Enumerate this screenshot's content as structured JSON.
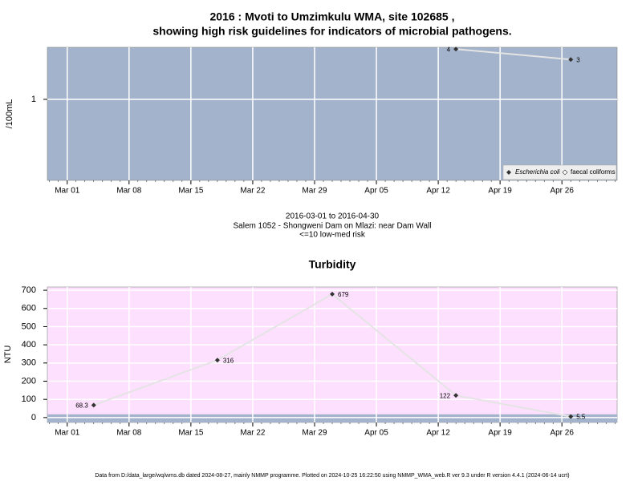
{
  "chart_data": [
    {
      "type": "line",
      "title": [
        "2016 : Mvoti to Umzimkulu WMA, site 102685 ,",
        "showing high risk guidelines for indicators of microbial pathogens."
      ],
      "ylabel": "/100mL",
      "ylog": true,
      "ylim": [
        0.107,
        4.2
      ],
      "yticks": [
        1
      ],
      "xlim": [
        "2016-02-27T18:00",
        "2016-05-02T06:00"
      ],
      "xticks": [
        {
          "value": "2016-03-01",
          "label": "Mar 01"
        },
        {
          "value": "2016-03-08",
          "label": "Mar 08"
        },
        {
          "value": "2016-03-15",
          "label": "Mar 15"
        },
        {
          "value": "2016-03-22",
          "label": "Mar 22"
        },
        {
          "value": "2016-03-29",
          "label": "Mar 29"
        },
        {
          "value": "2016-04-05",
          "label": "Apr 05"
        },
        {
          "value": "2016-04-12",
          "label": "Apr 12"
        },
        {
          "value": "2016-04-19",
          "label": "Apr 19"
        },
        {
          "value": "2016-04-26",
          "label": "Apr 26"
        }
      ],
      "grid": true,
      "legend": "bottom-right",
      "x": [
        "2016-04-14",
        "2016-04-27"
      ],
      "series": [
        {
          "name": "Escherichia coli",
          "color": "#333333",
          "values": [
            4,
            3
          ]
        },
        {
          "name": "faecal coliforms",
          "color": "#333333",
          "values": [
            null,
            null
          ]
        }
      ],
      "notes": [
        "2016-03-01 to 2016-04-30",
        "Salem 1052 - Shongweni Dam on Mlazi: near Dam Wall",
        "<=10 low-med risk"
      ]
    },
    {
      "type": "line",
      "title": "Turbidity",
      "ylabel": "NTU",
      "ylim": [
        -27,
        718
      ],
      "yticks": [
        0,
        100,
        200,
        300,
        400,
        500,
        600,
        700
      ],
      "xlim": [
        "2016-02-27T18:00",
        "2016-05-02T06:00"
      ],
      "xticks": [
        {
          "value": "2016-03-01",
          "label": "Mar 01"
        },
        {
          "value": "2016-03-08",
          "label": "Mar 08"
        },
        {
          "value": "2016-03-15",
          "label": "Mar 15"
        },
        {
          "value": "2016-03-22",
          "label": "Mar 22"
        },
        {
          "value": "2016-03-29",
          "label": "Mar 29"
        },
        {
          "value": "2016-04-05",
          "label": "Apr 05"
        },
        {
          "value": "2016-04-12",
          "label": "Apr 12"
        },
        {
          "value": "2016-04-19",
          "label": "Apr 19"
        },
        {
          "value": "2016-04-26",
          "label": "Apr 26"
        }
      ],
      "grid": true,
      "x": [
        "2016-03-04",
        "2016-03-18",
        "2016-03-31",
        "2016-04-14",
        "2016-04-27"
      ],
      "values": [
        68.3,
        316,
        679,
        122,
        5.5
      ]
    }
  ],
  "footer": "Data from D:/data_large/wq/wms.db dated 2024-08-27, mainly NMMP programme. Plotted on 2024-10-25 16:22:50 using NMMP_WMA_web.R ver 9.3 under R version 4.4.1 (2024-06-14 ucrt)"
}
